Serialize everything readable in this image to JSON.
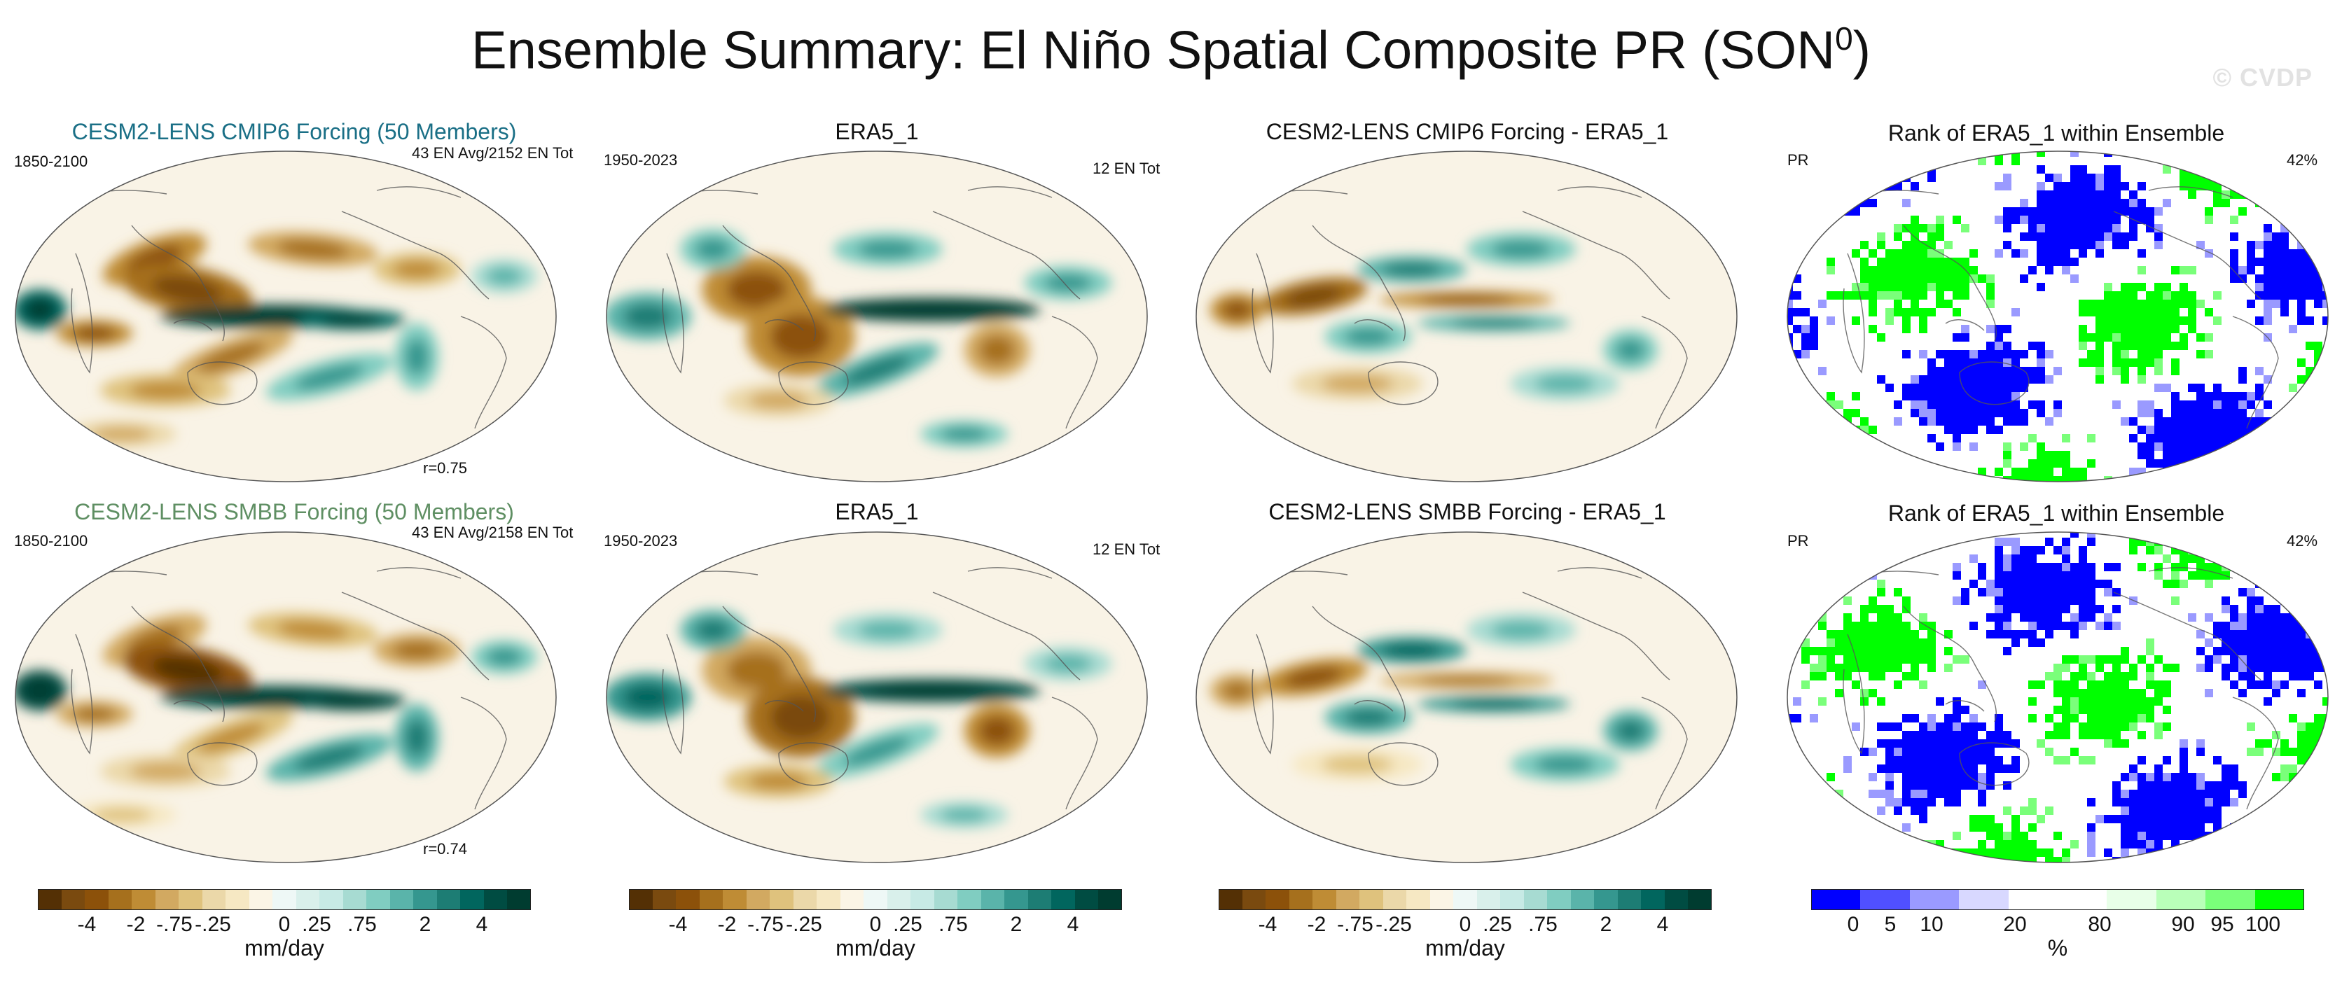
{
  "title": "Ensemble Summary: El Niño Spatial Composite PR (SON",
  "title_sup": "0",
  "title_close": ")",
  "watermark": "© CVDP",
  "rows": [
    {
      "ensemble_title": "CESM2-LENS CMIP6 Forcing (50 Members)",
      "ensemble_title_color": "#1a6f86",
      "ensemble_period": "1850-2100",
      "ensemble_count": "43 EN Avg/2152 EN Tot",
      "ensemble_corr": "r=0.75",
      "obs_title": "ERA5_1",
      "obs_period": "1950-2023",
      "obs_count": "12 EN Tot",
      "diff_title": "CESM2-LENS CMIP6 Forcing - ERA5_1",
      "rank_title": "Rank of ERA5_1 within Ensemble",
      "rank_var": "PR",
      "rank_pct": "42%"
    },
    {
      "ensemble_title": "CESM2-LENS SMBB Forcing (50 Members)",
      "ensemble_title_color": "#5f8f63",
      "ensemble_period": "1850-2100",
      "ensemble_count": "43 EN Avg/2158 EN Tot",
      "ensemble_corr": "r=0.74",
      "obs_title": "ERA5_1",
      "obs_period": "1950-2023",
      "obs_count": "12 EN Tot",
      "diff_title": "CESM2-LENS SMBB Forcing - ERA5_1",
      "rank_title": "Rank of ERA5_1 within Ensemble",
      "rank_var": "PR",
      "rank_pct": "42%"
    }
  ],
  "colorbar_pr": {
    "labels": [
      "-4",
      "-2",
      "-.75",
      "-.25",
      "0",
      ".25",
      ".75",
      "2",
      "4"
    ],
    "unit": "mm/day",
    "colors": [
      "#543005",
      "#7a4a0f",
      "#8c510a",
      "#a6701d",
      "#bf8c35",
      "#d2a961",
      "#dfc27d",
      "#ebd8a9",
      "#f6e8c3",
      "#fbf5e6",
      "#eef8f6",
      "#d9f0eb",
      "#c7eae5",
      "#a7dbd2",
      "#80cdc1",
      "#5ab4aa",
      "#35978f",
      "#1d7d74",
      "#01665e",
      "#004c42",
      "#003c30"
    ]
  },
  "colorbar_rank": {
    "labels": [
      "0",
      "5",
      "10",
      "20",
      "80",
      "90",
      "95",
      "100"
    ],
    "unit": "%",
    "colors": [
      "#0000ff",
      "#5050ff",
      "#9a9aff",
      "#d8d8ff",
      "#ffffff",
      "#ffffff",
      "#e8ffe8",
      "#b9ffb9",
      "#7aff7a",
      "#00ff00"
    ]
  }
}
